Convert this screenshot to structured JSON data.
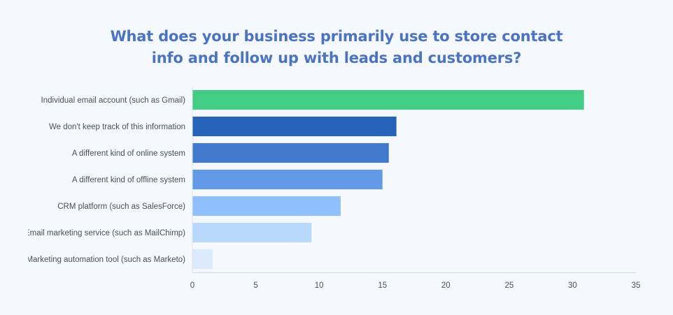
{
  "chart_data": {
    "type": "bar",
    "orientation": "horizontal",
    "title_line1": "What does your business primarily use to store contact",
    "title_line2": "info and follow up with leads and customers?",
    "categories": [
      "Individual email account (such as Gmail)",
      "We don't keep track of this information",
      "A different kind of online system",
      "A different kind of offline system",
      "CRM platform (such as SalesForce)",
      "Email marketing service (such as MailChimp)",
      "Marketing automation tool (such as Marketo)"
    ],
    "values": [
      30.9,
      16.1,
      15.5,
      15.0,
      11.7,
      9.4,
      1.6
    ],
    "colors": [
      "#43cc84",
      "#2563b9",
      "#4179cc",
      "#629ae8",
      "#8fc0fb",
      "#b9d9fc",
      "#dbe9fc"
    ],
    "xlim": [
      0,
      35
    ],
    "xticks": [
      0,
      5,
      10,
      15,
      20,
      25,
      30,
      35
    ],
    "grid": false,
    "xlabel": "",
    "ylabel": ""
  }
}
